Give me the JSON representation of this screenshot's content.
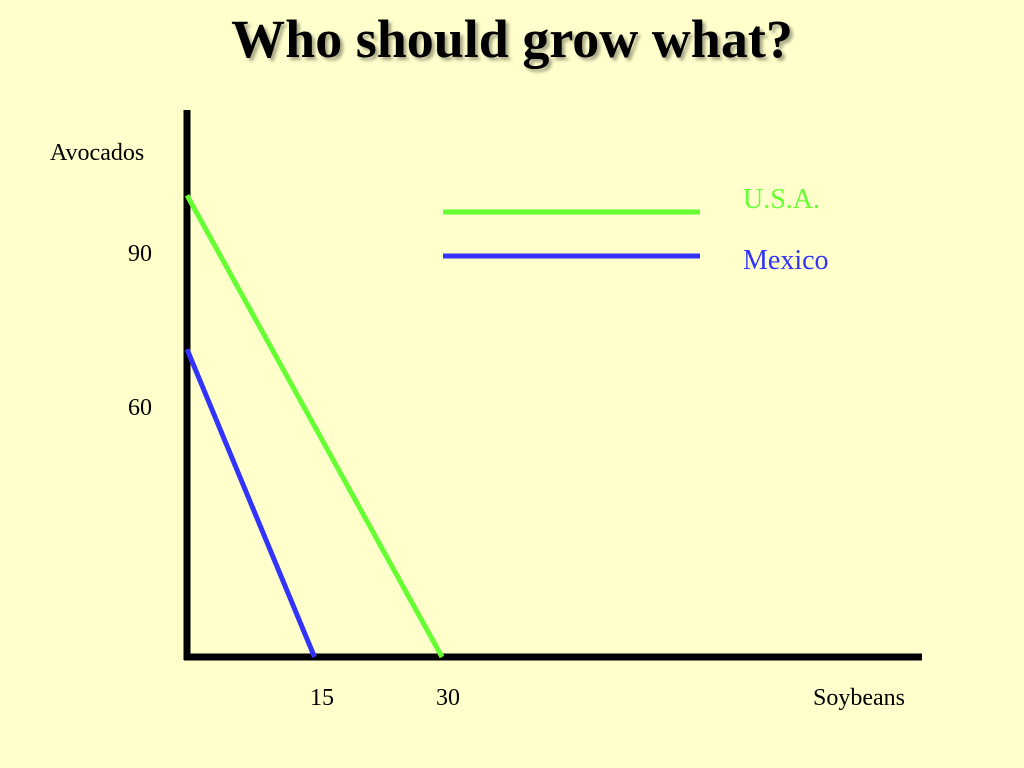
{
  "title": "Who should grow what?",
  "chart_data": {
    "type": "line",
    "title": "Who should grow what?",
    "xlabel": "Soybeans",
    "ylabel": "Avocados",
    "x_ticks": [
      "15",
      "30"
    ],
    "y_ticks": [
      "90",
      "60"
    ],
    "xlim": [
      0,
      85
    ],
    "ylim": [
      0,
      105
    ],
    "legend": "top-right",
    "series": [
      {
        "name": "U.S.A.",
        "color": "#66ff33",
        "points": [
          [
            0,
            90
          ],
          [
            30,
            0
          ]
        ]
      },
      {
        "name": "Mexico",
        "color": "#3333ff",
        "points": [
          [
            0,
            60
          ],
          [
            15,
            0
          ]
        ]
      }
    ]
  },
  "colors": {
    "background": "#ffffcc",
    "axis": "#000000"
  }
}
